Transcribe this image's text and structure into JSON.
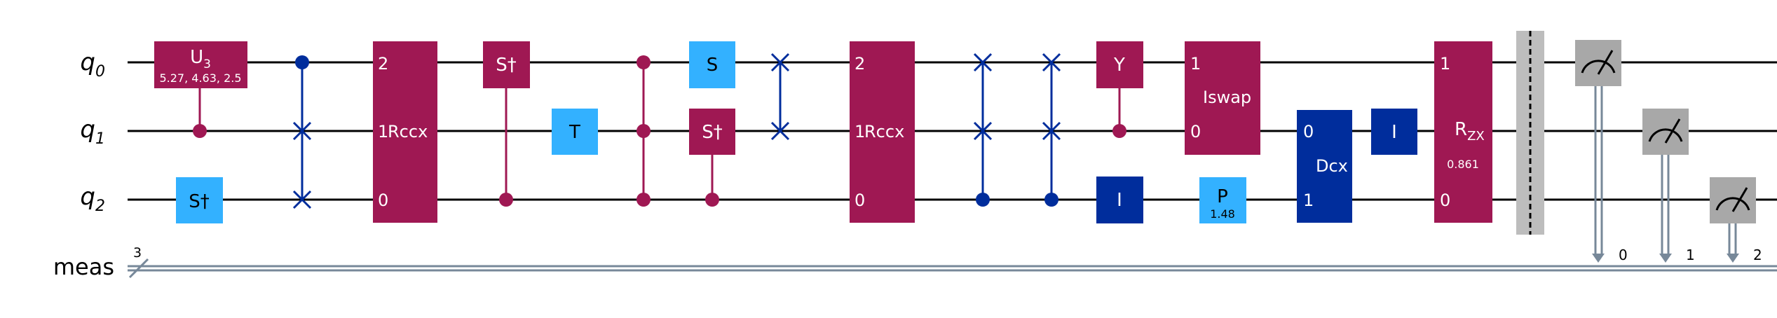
{
  "circuit": {
    "qubits": [
      {
        "base": "q",
        "sub": "0"
      },
      {
        "base": "q",
        "sub": "1"
      },
      {
        "base": "q",
        "sub": "2"
      }
    ],
    "classical": {
      "name": "meas",
      "width": "3",
      "bits": [
        "0",
        "1",
        "2"
      ]
    },
    "colors": {
      "wire": "#000000",
      "classical_wire": "#778899",
      "magenta": "#9f1853",
      "dark_blue": "#002d9c",
      "light_blue": "#33b1ff",
      "measure": "#a8a8a8",
      "barrier": "#bdbdbd"
    },
    "gates": {
      "u3": {
        "base": "U",
        "sub": "3",
        "params": "5.27, 4.63, 2.5"
      },
      "sdg_q2": {
        "label": "S†"
      },
      "rccx_1": {
        "name": "Rccx",
        "pins": [
          "2",
          "1",
          "0"
        ]
      },
      "sdg_q0": {
        "label": "S†"
      },
      "t_q1": {
        "label": "T"
      },
      "s_q0": {
        "label": "S"
      },
      "sdg_q1": {
        "label": "S†"
      },
      "rccx_2": {
        "name": "Rccx",
        "pins": [
          "2",
          "1",
          "0"
        ]
      },
      "y_q0": {
        "label": "Y"
      },
      "id_q2": {
        "label": "I"
      },
      "iswap": {
        "name": "Iswap",
        "pins": [
          "1",
          "0"
        ]
      },
      "p_q2": {
        "label": "P",
        "param": "1.48"
      },
      "dcx": {
        "name": "Dcx",
        "pins": [
          "0",
          "1"
        ]
      },
      "id_q1": {
        "label": "I"
      },
      "rzx": {
        "base": "R",
        "sub": "ZX",
        "param": "0.861",
        "pins": [
          "1",
          "0"
        ]
      }
    }
  }
}
